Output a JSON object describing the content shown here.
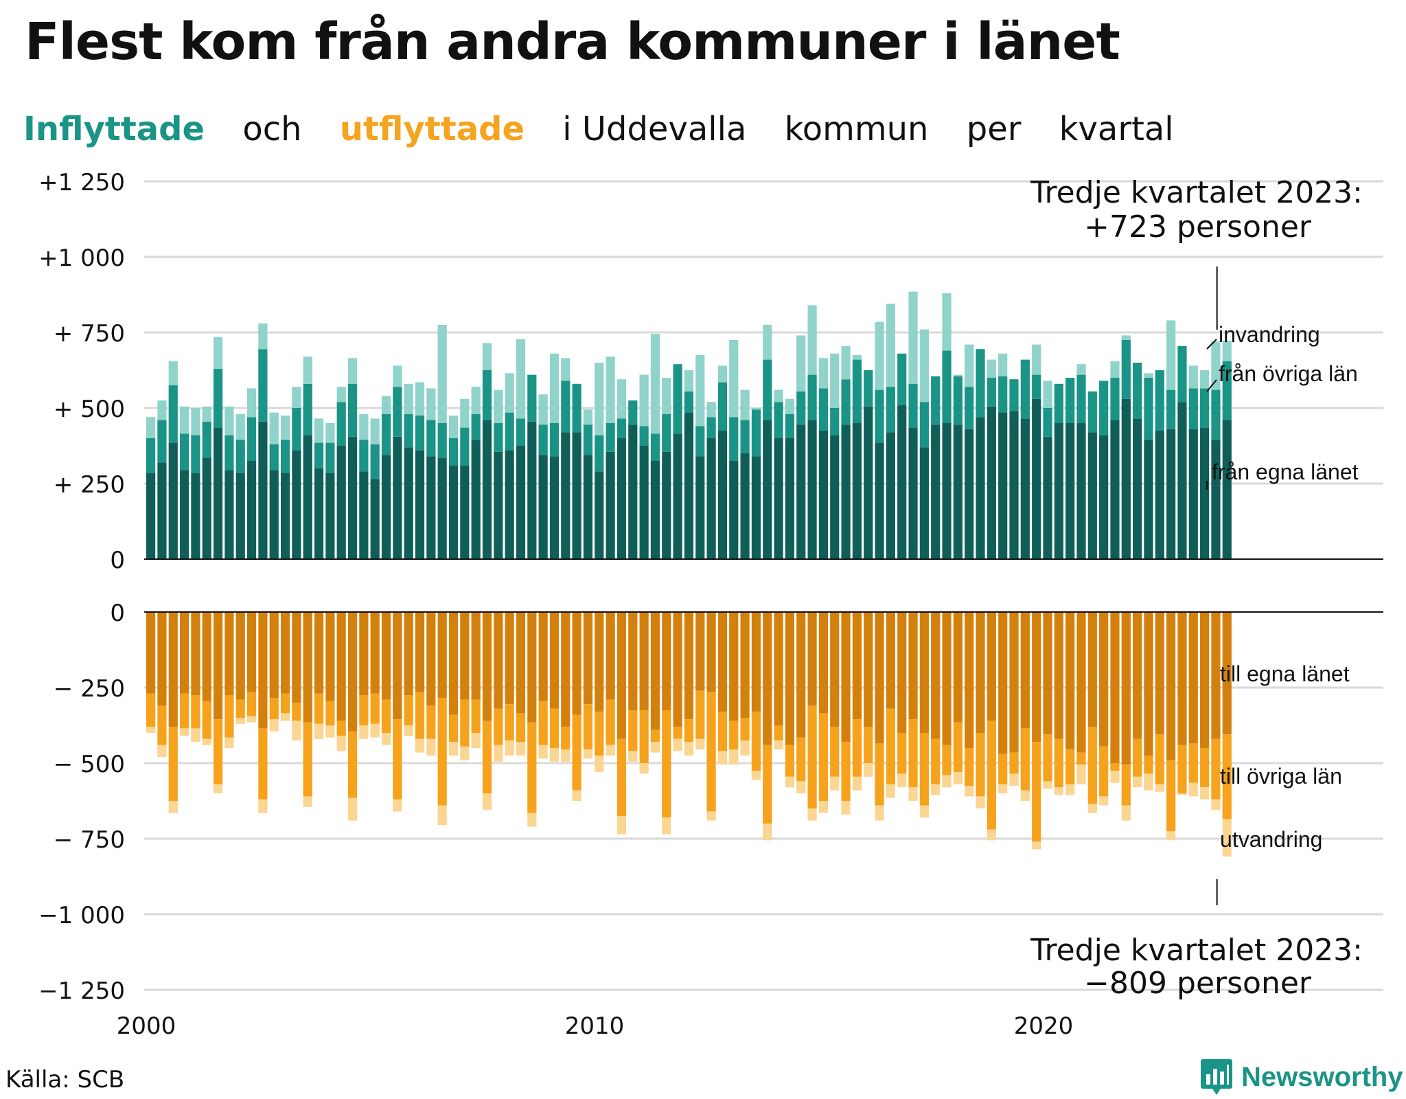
{
  "title": "Flest kom från andra kommuner i länet",
  "subtitle": {
    "in_label": "Inflyttade",
    "and": "och",
    "out_label": "utflyttade",
    "rest": [
      "i Uddevalla",
      "kommun",
      "per",
      "kvartal"
    ]
  },
  "colors": {
    "in_own": "#0f5f58",
    "in_other": "#1a9486",
    "in_immig": "#8fd3ca",
    "out_own": "#d4800d",
    "out_other": "#f6a21c",
    "out_emig": "#fbd592",
    "grid": "#d9d9d9"
  },
  "source": "Källa: SCB",
  "brand": {
    "name": "Newsworthy",
    "icon": "bar-chart-speech-bubble-icon"
  },
  "chart_data": {
    "type": "bar",
    "stacked": true,
    "x_unit": "quarter",
    "x_start": "2000 Q1",
    "x_end": "2023 Q3",
    "x_ticks": [
      "2000",
      "2010",
      "2020"
    ],
    "y_ticks": [
      "+1 250",
      "+1 000",
      "+ 750",
      "+ 500",
      "+ 250",
      "0",
      "0",
      "− 250",
      "− 500",
      "− 750",
      "−1 000",
      "−1 250"
    ],
    "ylim_in": [
      0,
      1250
    ],
    "ylim_out": [
      -1250,
      0
    ],
    "grid": true,
    "annotation_top": {
      "line1": "Tredje kvartalet 2023:",
      "line2": "+723 personer"
    },
    "annotation_bottom": {
      "line1": "Tredje kvartalet 2023:",
      "line2": "−809 personer"
    },
    "series_in": [
      {
        "name": "från egna länet",
        "values": [
          285,
          320,
          385,
          295,
          285,
          335,
          435,
          295,
          285,
          325,
          455,
          295,
          285,
          360,
          410,
          300,
          285,
          375,
          405,
          290,
          265,
          345,
          405,
          370,
          360,
          340,
          335,
          310,
          310,
          395,
          460,
          355,
          360,
          375,
          455,
          345,
          340,
          420,
          420,
          345,
          290,
          355,
          400,
          445,
          375,
          325,
          355,
          415,
          485,
          340,
          400,
          425,
          325,
          350,
          340,
          460,
          400,
          400,
          445,
          460,
          425,
          410,
          445,
          450,
          505,
          385,
          420,
          510,
          435,
          370,
          445,
          450,
          445,
          430,
          470,
          505,
          485,
          490,
          465,
          530,
          405,
          450,
          450,
          450,
          420,
          410,
          460,
          530,
          465,
          395,
          425,
          430,
          520,
          430,
          435,
          395,
          460
        ]
      },
      {
        "name": "från övriga län",
        "values": [
          400,
          460,
          575,
          415,
          410,
          455,
          630,
          410,
          395,
          470,
          695,
          380,
          395,
          500,
          580,
          385,
          385,
          520,
          580,
          395,
          380,
          480,
          570,
          480,
          475,
          460,
          450,
          400,
          435,
          480,
          625,
          450,
          485,
          465,
          610,
          445,
          450,
          590,
          580,
          445,
          410,
          450,
          465,
          525,
          440,
          415,
          480,
          645,
          555,
          440,
          470,
          585,
          470,
          460,
          495,
          660,
          520,
          480,
          555,
          610,
          565,
          500,
          595,
          660,
          625,
          560,
          570,
          680,
          580,
          520,
          605,
          690,
          605,
          570,
          695,
          600,
          605,
          595,
          660,
          610,
          500,
          580,
          600,
          610,
          555,
          590,
          600,
          725,
          650,
          600,
          625,
          560,
          705,
          565,
          565,
          560,
          655
        ]
      },
      {
        "name": "invandring",
        "values": [
          470,
          525,
          655,
          505,
          500,
          505,
          735,
          505,
          480,
          565,
          780,
          485,
          475,
          570,
          670,
          465,
          450,
          570,
          665,
          480,
          465,
          540,
          640,
          580,
          585,
          565,
          775,
          475,
          530,
          570,
          715,
          560,
          615,
          728,
          540,
          545,
          680,
          665,
          520,
          495,
          650,
          670,
          595,
          525,
          610,
          745,
          600,
          520,
          625,
          675,
          520,
          640,
          725,
          560,
          500,
          775,
          560,
          530,
          740,
          840,
          665,
          680,
          705,
          675,
          610,
          785,
          845,
          590,
          885,
          760,
          575,
          880,
          610,
          710,
          610,
          660,
          680,
          595,
          620,
          710,
          590,
          540,
          590,
          645,
          525,
          530,
          655,
          740,
          520,
          615,
          565,
          790,
          690,
          640,
          625,
          720,
          723
        ]
      }
    ],
    "series_out": [
      {
        "name": "till egna länet",
        "values": [
          -270,
          -310,
          -380,
          -270,
          -275,
          -295,
          -355,
          -275,
          -290,
          -265,
          -385,
          -285,
          -270,
          -300,
          -365,
          -270,
          -295,
          -360,
          -395,
          -275,
          -270,
          -290,
          -355,
          -275,
          -265,
          -310,
          -285,
          -340,
          -290,
          -290,
          -360,
          -320,
          -305,
          -335,
          -365,
          -295,
          -320,
          -380,
          -340,
          -305,
          -330,
          -290,
          -420,
          -325,
          -325,
          -390,
          -325,
          -380,
          -355,
          -260,
          -265,
          -330,
          -360,
          -350,
          -330,
          -440,
          -375,
          -440,
          -415,
          -310,
          -335,
          -380,
          -430,
          -355,
          -380,
          -435,
          -320,
          -400,
          -355,
          -400,
          -420,
          -440,
          -365,
          -450,
          -400,
          -360,
          -470,
          -465,
          -385,
          -430,
          -405,
          -420,
          -455,
          -465,
          -380,
          -445,
          -500,
          -505,
          -420,
          -475,
          -405,
          -490,
          -440,
          -435,
          -450,
          -420,
          -405
        ]
      },
      {
        "name": "till övriga län",
        "values": [
          -380,
          -440,
          -625,
          -385,
          -385,
          -420,
          -570,
          -415,
          -350,
          -345,
          -620,
          -355,
          -335,
          -360,
          -610,
          -370,
          -375,
          -410,
          -615,
          -375,
          -370,
          -400,
          -620,
          -375,
          -420,
          -420,
          -640,
          -430,
          -445,
          -400,
          -600,
          -440,
          -425,
          -430,
          -665,
          -440,
          -450,
          -455,
          -590,
          -455,
          -475,
          -440,
          -675,
          -460,
          -500,
          -430,
          -680,
          -420,
          -430,
          -420,
          -660,
          -460,
          -455,
          -425,
          -525,
          -700,
          -425,
          -545,
          -560,
          -650,
          -625,
          -545,
          -625,
          -545,
          -500,
          -640,
          -570,
          -535,
          -580,
          -640,
          -570,
          -540,
          -530,
          -575,
          -610,
          -720,
          -570,
          -535,
          -590,
          -760,
          -560,
          -580,
          -570,
          -505,
          -635,
          -610,
          -525,
          -640,
          -545,
          -535,
          -570,
          -725,
          -600,
          -565,
          -580,
          -620,
          -685
        ]
      },
      {
        "name": "utvandring",
        "values": [
          -400,
          -480,
          -665,
          -410,
          -430,
          -440,
          -600,
          -450,
          -370,
          -365,
          -665,
          -395,
          -360,
          -425,
          -645,
          -420,
          -415,
          -460,
          -690,
          -420,
          -415,
          -440,
          -660,
          -410,
          -465,
          -475,
          -705,
          -475,
          -490,
          -450,
          -655,
          -495,
          -475,
          -475,
          -710,
          -485,
          -495,
          -495,
          -625,
          -485,
          -530,
          -475,
          -735,
          -495,
          -535,
          -465,
          -735,
          -460,
          -475,
          -455,
          -690,
          -505,
          -505,
          -475,
          -555,
          -755,
          -455,
          -580,
          -600,
          -690,
          -665,
          -590,
          -670,
          -590,
          -545,
          -690,
          -615,
          -580,
          -625,
          -680,
          -605,
          -580,
          -570,
          -610,
          -650,
          -755,
          -600,
          -575,
          -625,
          -785,
          -585,
          -605,
          -605,
          -570,
          -665,
          -640,
          -565,
          -690,
          -580,
          -590,
          -595,
          -755,
          -605,
          -610,
          -620,
          -655,
          -809
        ]
      }
    ],
    "series_labels": {
      "in": [
        "invandring",
        "från övriga län",
        "från egna länet"
      ],
      "out": [
        "till egna länet",
        "till övriga län",
        "utvandring"
      ]
    }
  }
}
